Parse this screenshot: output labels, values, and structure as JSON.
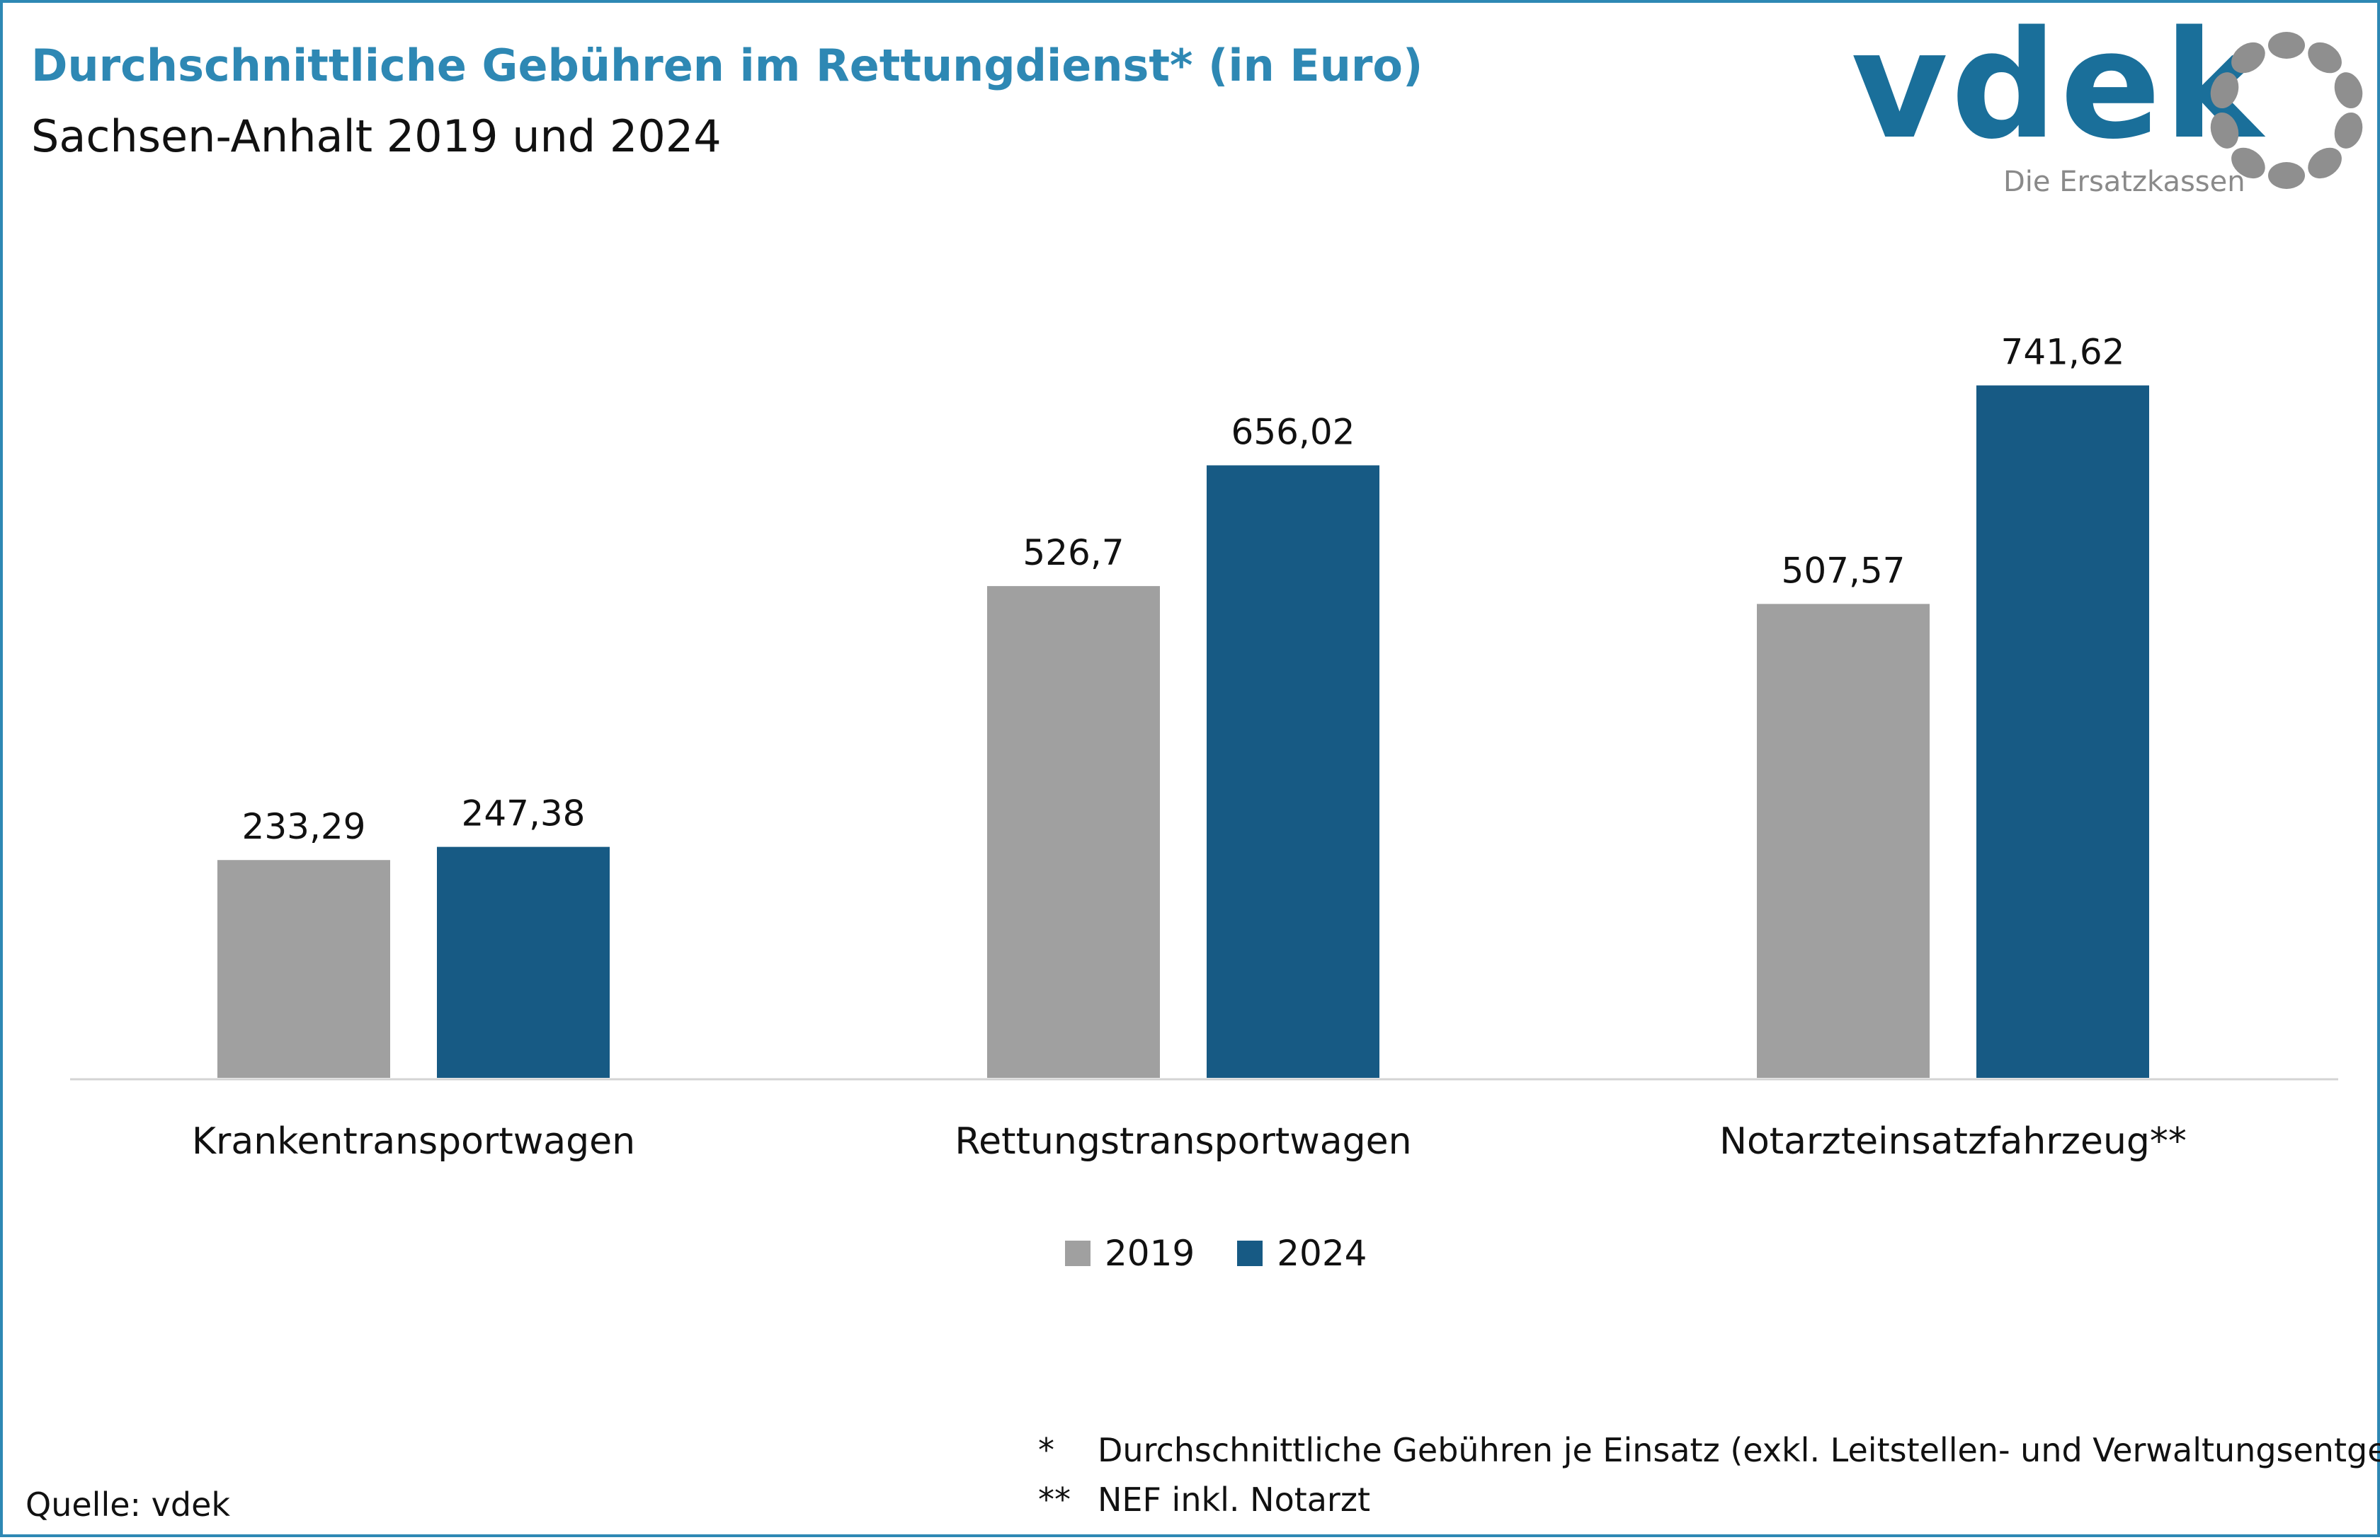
{
  "title": "Durchschnittliche Gebühren im Rettungdienst* (in Euro)",
  "subtitle": "Sachsen-Anhalt 2019 und 2024",
  "logo": {
    "text": "vdek",
    "tagline": "Die Ersatzkassen"
  },
  "colors": {
    "accent": "#2e88b4",
    "series_2019": "#a0a0a0",
    "series_2024": "#175a84",
    "logo_blue": "#1a6f9a",
    "logo_gray": "#8f8f8f"
  },
  "chart_data": {
    "type": "bar",
    "categories": [
      "Krankentransportwagen",
      "Rettungstransportwagen",
      "Notarzteinsatzfahrzeug**"
    ],
    "series": [
      {
        "name": "2019",
        "values": [
          233.29,
          526.7,
          507.57
        ],
        "labels": [
          "233,29",
          "526,7",
          "507,57"
        ]
      },
      {
        "name": "2024",
        "values": [
          247.38,
          656.02,
          741.62
        ],
        "labels": [
          "247,38",
          "656,02",
          "741,62"
        ]
      }
    ],
    "title": "Durchschnittliche Gebühren im Rettungdienst* (in Euro)",
    "xlabel": "",
    "ylabel": "",
    "ylim": [
      0,
      800
    ],
    "grid": false,
    "legend": "bottom-center"
  },
  "legend": {
    "item_2019": "2019",
    "item_2024": "2024"
  },
  "footnotes": [
    {
      "mark": "*",
      "text": "Durchschnittliche Gebühren je Einsatz (exkl. Leitstellen- und Verwaltungsentgelte)"
    },
    {
      "mark": "**",
      "text": "NEF inkl. Notarzt"
    }
  ],
  "source": "Quelle: vdek"
}
